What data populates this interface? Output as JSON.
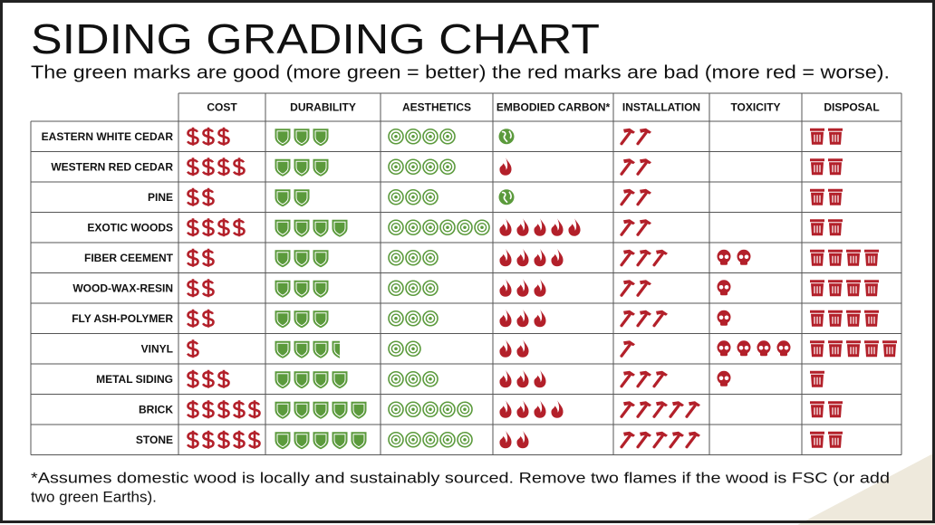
{
  "title": "SIDING GRADING CHART",
  "subtitle": "The green marks are good (more green = better) the red marks are bad (more red = worse).",
  "table": {
    "columns": [
      "COST",
      "DURABILITY",
      "AESTHETICS",
      "EMBODIED CARBON*",
      "INSTALLATION",
      "TOXICITY",
      "DISPOSAL"
    ],
    "rows": [
      {
        "label": "EASTERN WHITE CEDAR",
        "cost": 3,
        "durability": 3,
        "aesthetics": 4,
        "earths": 1,
        "flames": 0,
        "installation": 2,
        "toxicity": 0,
        "disposal": 2
      },
      {
        "label": "WESTERN RED CEDAR",
        "cost": 4,
        "durability": 3,
        "aesthetics": 4,
        "earths": 0,
        "flames": 1,
        "installation": 2,
        "toxicity": 0,
        "disposal": 2
      },
      {
        "label": "PINE",
        "cost": 2,
        "durability": 2,
        "aesthetics": 3,
        "earths": 1,
        "flames": 0,
        "installation": 2,
        "toxicity": 0,
        "disposal": 2
      },
      {
        "label": "EXOTIC WOODS",
        "cost": 4,
        "durability": 4,
        "aesthetics": 6,
        "earths": 0,
        "flames": 5,
        "installation": 2,
        "toxicity": 0,
        "disposal": 2
      },
      {
        "label": "FIBER CEEMENT",
        "cost": 2,
        "durability": 3,
        "aesthetics": 3,
        "earths": 0,
        "flames": 4,
        "installation": 3,
        "toxicity": 2,
        "disposal": 4
      },
      {
        "label": "WOOD-WAX-RESIN",
        "cost": 2,
        "durability": 3,
        "aesthetics": 3,
        "earths": 0,
        "flames": 3,
        "installation": 2,
        "toxicity": 1,
        "disposal": 4
      },
      {
        "label": "FLY ASH-POLYMER",
        "cost": 2,
        "durability": 3,
        "aesthetics": 3,
        "earths": 0,
        "flames": 3,
        "installation": 3,
        "toxicity": 1,
        "disposal": 4
      },
      {
        "label": "VINYL",
        "cost": 1,
        "durability": 3.5,
        "aesthetics": 2,
        "earths": 0,
        "flames": 2,
        "installation": 1,
        "toxicity": 4,
        "disposal": 5
      },
      {
        "label": "METAL SIDING",
        "cost": 3,
        "durability": 4,
        "aesthetics": 3,
        "earths": 0,
        "flames": 3,
        "installation": 3,
        "toxicity": 1,
        "disposal": 1
      },
      {
        "label": "BRICK",
        "cost": 5,
        "durability": 5,
        "aesthetics": 5,
        "earths": 0,
        "flames": 4,
        "installation": 5,
        "toxicity": 0,
        "disposal": 2
      },
      {
        "label": "STONE",
        "cost": 5,
        "durability": 5,
        "aesthetics": 5,
        "earths": 0,
        "flames": 2,
        "installation": 5,
        "toxicity": 0,
        "disposal": 2
      }
    ]
  },
  "footnote": [
    "*Assumes domestic wood is locally and sustainably sourced. Remove two flames if the wood is FSC (or add",
    "two green Earths)."
  ]
}
